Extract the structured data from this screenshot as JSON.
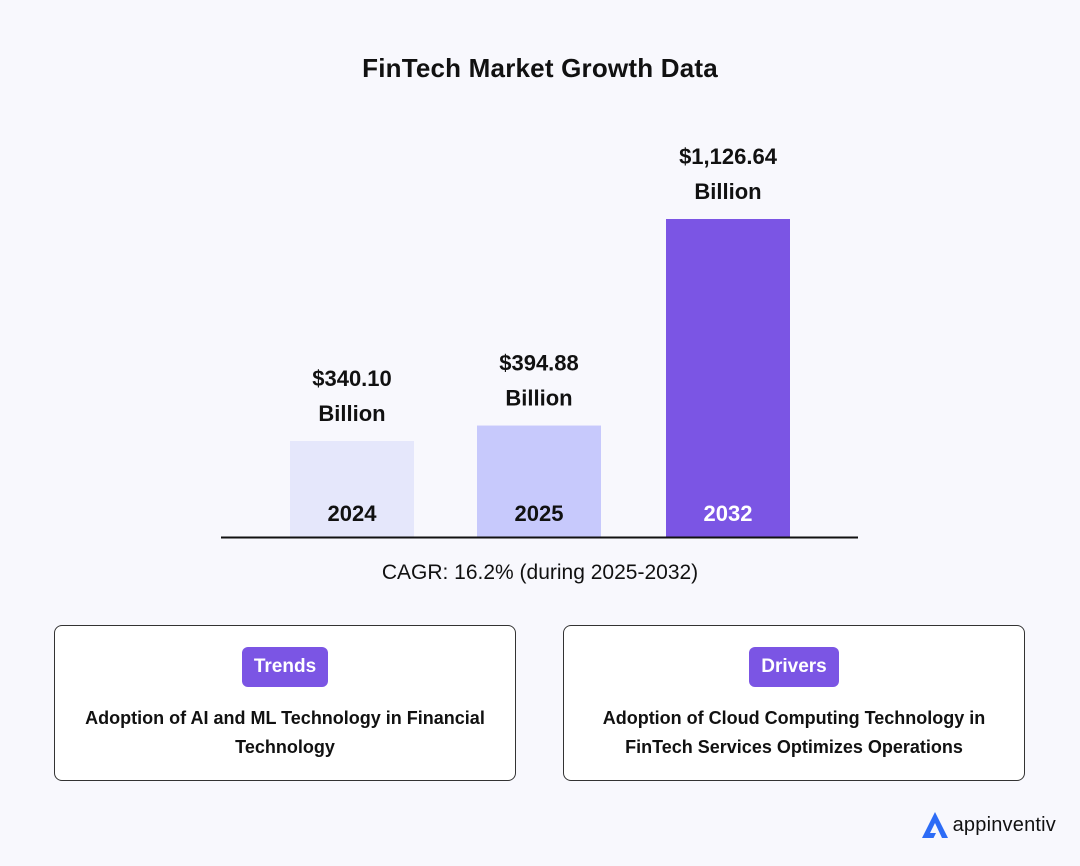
{
  "chart_data": {
    "type": "bar",
    "title": "FinTech Market Growth Data",
    "categories": [
      "2024",
      "2025",
      "2032"
    ],
    "values": [
      340.1,
      394.88,
      1126.64
    ],
    "value_labels": [
      [
        "$340.10",
        "Billion"
      ],
      [
        "$394.88",
        "Billion"
      ],
      [
        "$1,126.64",
        "Billion"
      ]
    ],
    "bar_colors": [
      "#e5e7fb",
      "#c7c9fc",
      "#7b55e4"
    ],
    "category_label_colors": [
      "#111111",
      "#111111",
      "#ffffff"
    ],
    "axis_color": "#111111",
    "grid": false,
    "annotation": "CAGR: 16.2% (during 2025-2032)"
  },
  "cards": {
    "trends": {
      "badge": "Trends",
      "text": "Adoption of AI and ML Technology in Financial Technology"
    },
    "drivers": {
      "badge": "Drivers",
      "text": "Adoption of Cloud Computing Technology in FinTech Services Optimizes Operations"
    }
  },
  "brand": {
    "name": "appinventiv",
    "icon": "appinventiv-logo-icon",
    "accent": "#2d6cf6"
  }
}
